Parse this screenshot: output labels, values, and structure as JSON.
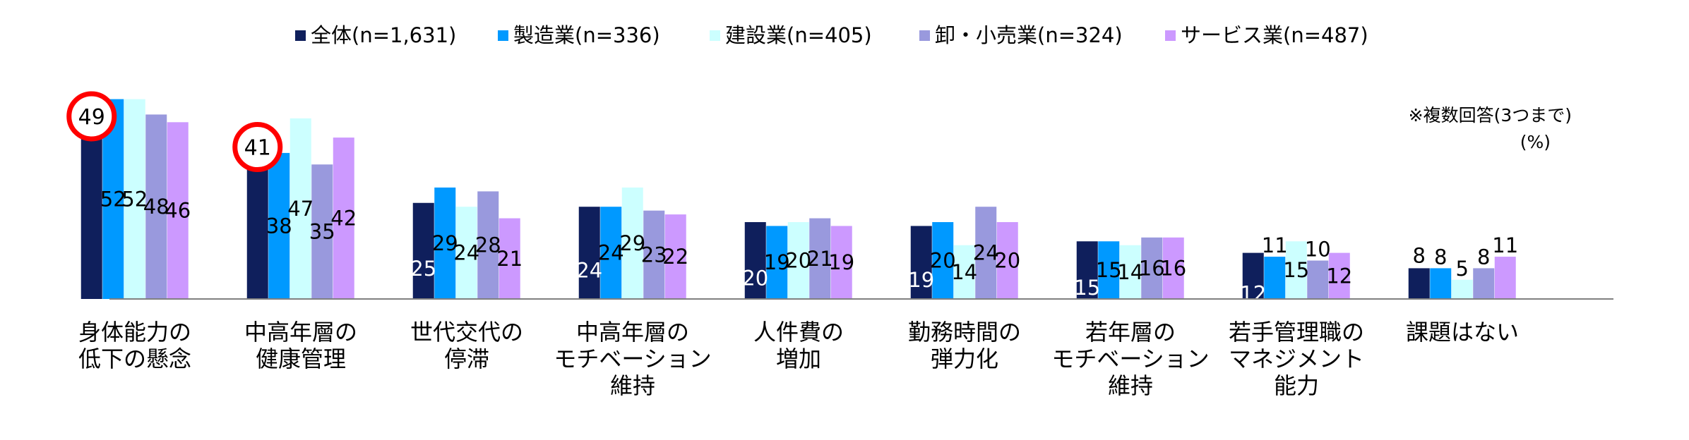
{
  "chart_data": {
    "type": "bar",
    "title": "",
    "xlabel": "",
    "ylabel": "",
    "ylim": [
      0,
      60
    ],
    "grid": false,
    "legend_position": "top",
    "note": "※複数回答(3つまで)",
    "unit": "(%)",
    "categories": [
      [
        "身体能力の",
        "低下の懸念"
      ],
      [
        "中高年層の",
        "健康管理"
      ],
      [
        "世代交代の",
        "停滞"
      ],
      [
        "中高年層の",
        "モチベーション",
        "維持"
      ],
      [
        "人件費の",
        "増加"
      ],
      [
        "勤務時間の",
        "弾力化"
      ],
      [
        "若年層の",
        "モチベーション",
        "維持"
      ],
      [
        "若手管理職の",
        "マネジメント",
        "能力"
      ],
      [
        "課題はない"
      ]
    ],
    "series": [
      {
        "name": "全体(n=1,631)",
        "color": "#0f1f5c",
        "values": [
          49,
          41,
          25,
          24,
          20,
          19,
          15,
          12,
          8
        ]
      },
      {
        "name": "製造業(n=336)",
        "color": "#0099ff",
        "values": [
          52,
          38,
          29,
          24,
          19,
          20,
          15,
          11,
          8
        ]
      },
      {
        "name": "建設業(n=405)",
        "color": "#ccffff",
        "values": [
          52,
          47,
          24,
          29,
          20,
          14,
          14,
          15,
          5
        ]
      },
      {
        "name": "卸・小売業(n=324)",
        "color": "#9999dd",
        "values": [
          48,
          35,
          28,
          23,
          21,
          24,
          16,
          10,
          8
        ]
      },
      {
        "name": "サービス業(n=487)",
        "color": "#cc99ff",
        "values": [
          46,
          42,
          21,
          22,
          19,
          20,
          16,
          12,
          11
        ]
      }
    ],
    "highlighted": [
      {
        "category_index": 0,
        "series_index": 0,
        "value": 49
      },
      {
        "category_index": 1,
        "series_index": 0,
        "value": 41
      }
    ],
    "highlight_color": "#ff0000"
  }
}
